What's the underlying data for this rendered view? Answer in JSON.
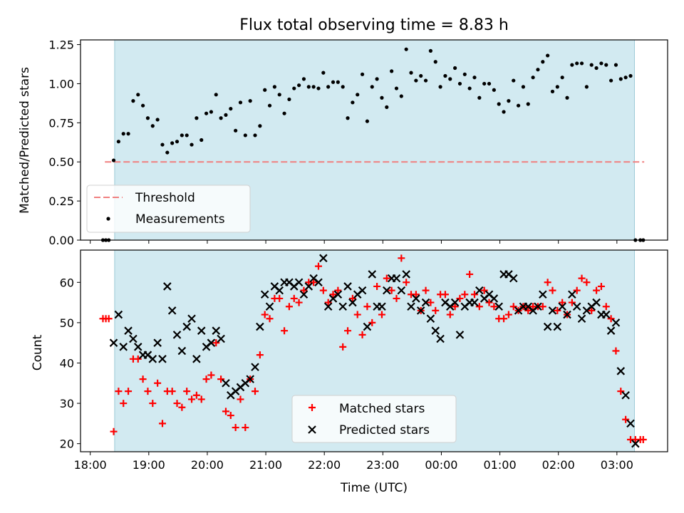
{
  "chart_data": [
    {
      "type": "scatter",
      "title": "Flux total observing time = 8.83 h",
      "ylabel": "Matched/Predicted stars",
      "xlabel": "",
      "xlim": [
        "17:50",
        "03:52"
      ],
      "ylim": [
        0,
        1.28
      ],
      "yticks": [
        0.0,
        0.25,
        0.5,
        0.75,
        1.0,
        1.25
      ],
      "ytick_labels": [
        "0.00",
        "0.25",
        "0.50",
        "0.75",
        "1.00",
        "1.25"
      ],
      "observing_window": [
        "18:25",
        "03:18"
      ],
      "threshold": {
        "name": "Threshold",
        "value": 0.5,
        "x_range": [
          "18:15",
          "03:28"
        ],
        "color": "#f08080"
      },
      "legend": {
        "placement": "lower-left",
        "entries": [
          "Threshold",
          "Measurements"
        ]
      },
      "series": [
        {
          "name": "Measurements",
          "color": "#000000",
          "x": [
            "18:13",
            "18:16",
            "18:19",
            "18:24",
            "18:29",
            "18:34",
            "18:39",
            "18:44",
            "18:49",
            "18:54",
            "18:59",
            "19:04",
            "19:09",
            "19:14",
            "19:19",
            "19:24",
            "19:29",
            "19:34",
            "19:39",
            "19:44",
            "19:49",
            "19:54",
            "19:59",
            "20:04",
            "20:09",
            "20:14",
            "20:19",
            "20:24",
            "20:29",
            "20:34",
            "20:39",
            "20:44",
            "20:49",
            "20:54",
            "20:59",
            "21:04",
            "21:09",
            "21:14",
            "21:19",
            "21:24",
            "21:29",
            "21:34",
            "21:39",
            "21:44",
            "21:49",
            "21:54",
            "21:59",
            "22:04",
            "22:09",
            "22:14",
            "22:19",
            "22:24",
            "22:29",
            "22:34",
            "22:39",
            "22:44",
            "22:49",
            "22:54",
            "22:59",
            "23:04",
            "23:09",
            "23:14",
            "23:19",
            "23:24",
            "23:29",
            "23:34",
            "23:39",
            "23:44",
            "23:49",
            "23:54",
            "23:59",
            "00:04",
            "00:09",
            "00:14",
            "00:19",
            "00:24",
            "00:29",
            "00:34",
            "00:39",
            "00:44",
            "00:49",
            "00:54",
            "00:59",
            "01:04",
            "01:09",
            "01:14",
            "01:19",
            "01:24",
            "01:29",
            "01:34",
            "01:39",
            "01:44",
            "01:49",
            "01:54",
            "01:59",
            "02:04",
            "02:09",
            "02:14",
            "02:19",
            "02:24",
            "02:29",
            "02:34",
            "02:39",
            "02:44",
            "02:49",
            "02:54",
            "02:59",
            "03:04",
            "03:09",
            "03:14",
            "03:19",
            "03:24",
            "03:27"
          ],
          "y": [
            0.0,
            0.0,
            0.0,
            0.51,
            0.63,
            0.68,
            0.68,
            0.89,
            0.93,
            0.86,
            0.78,
            0.73,
            0.77,
            0.61,
            0.56,
            0.62,
            0.63,
            0.67,
            0.67,
            0.61,
            0.78,
            0.64,
            0.81,
            0.82,
            0.93,
            0.78,
            0.8,
            0.84,
            0.7,
            0.88,
            0.67,
            0.89,
            0.67,
            0.73,
            0.96,
            0.86,
            0.98,
            0.93,
            0.81,
            0.9,
            0.97,
            0.99,
            1.03,
            0.98,
            0.98,
            0.97,
            1.07,
            0.98,
            1.01,
            1.01,
            0.98,
            0.78,
            0.88,
            0.93,
            1.06,
            0.76,
            0.98,
            1.03,
            0.91,
            0.85,
            1.08,
            0.97,
            0.92,
            1.22,
            1.07,
            1.02,
            1.05,
            1.02,
            1.21,
            1.14,
            0.98,
            1.05,
            1.03,
            1.1,
            1.0,
            1.06,
            0.97,
            1.04,
            0.91,
            1.0,
            1.0,
            0.96,
            0.87,
            0.82,
            0.89,
            1.02,
            0.86,
            0.98,
            0.87,
            1.04,
            1.09,
            1.14,
            1.18,
            0.95,
            0.98,
            1.04,
            0.91,
            1.12,
            1.13,
            1.13,
            0.98,
            1.12,
            1.1,
            1.13,
            1.12,
            1.02,
            1.12,
            1.03,
            1.04,
            1.05,
            0.0,
            0.0,
            0.0
          ]
        }
      ]
    },
    {
      "type": "scatter",
      "title": "",
      "ylabel": "Count",
      "xlabel": "Time (UTC)",
      "xlim": [
        "17:50",
        "03:52"
      ],
      "ylim": [
        18,
        68
      ],
      "yticks": [
        20,
        30,
        40,
        50,
        60
      ],
      "xticks": [
        "18:00",
        "19:00",
        "20:00",
        "21:00",
        "22:00",
        "23:00",
        "00:00",
        "01:00",
        "02:00",
        "03:00"
      ],
      "observing_window": [
        "18:25",
        "03:18"
      ],
      "legend": {
        "placement": "lower-center",
        "entries": [
          "Matched stars",
          "Predicted stars"
        ]
      },
      "series": [
        {
          "name": "Matched stars",
          "color": "#ff0000",
          "marker": "plus",
          "x": [
            "18:13",
            "18:16",
            "18:19",
            "18:24",
            "18:29",
            "18:34",
            "18:39",
            "18:44",
            "18:49",
            "18:54",
            "18:59",
            "19:04",
            "19:09",
            "19:14",
            "19:19",
            "19:24",
            "19:29",
            "19:34",
            "19:39",
            "19:44",
            "19:49",
            "19:54",
            "19:59",
            "20:04",
            "20:09",
            "20:14",
            "20:19",
            "20:24",
            "20:29",
            "20:34",
            "20:39",
            "20:44",
            "20:49",
            "20:54",
            "20:59",
            "21:04",
            "21:09",
            "21:14",
            "21:19",
            "21:24",
            "21:29",
            "21:34",
            "21:39",
            "21:44",
            "21:49",
            "21:54",
            "21:59",
            "22:04",
            "22:09",
            "22:14",
            "22:19",
            "22:24",
            "22:29",
            "22:34",
            "22:39",
            "22:44",
            "22:49",
            "22:54",
            "22:59",
            "23:04",
            "23:09",
            "23:14",
            "23:19",
            "23:24",
            "23:29",
            "23:34",
            "23:39",
            "23:44",
            "23:49",
            "23:54",
            "23:59",
            "00:04",
            "00:09",
            "00:14",
            "00:19",
            "00:24",
            "00:29",
            "00:34",
            "00:39",
            "00:44",
            "00:49",
            "00:54",
            "00:59",
            "01:04",
            "01:09",
            "01:14",
            "01:19",
            "01:24",
            "01:29",
            "01:34",
            "01:39",
            "01:44",
            "01:49",
            "01:54",
            "01:59",
            "02:04",
            "02:09",
            "02:14",
            "02:19",
            "02:24",
            "02:29",
            "02:34",
            "02:39",
            "02:44",
            "02:49",
            "02:54",
            "02:59",
            "03:04",
            "03:09",
            "03:14",
            "03:19",
            "03:24",
            "03:27"
          ],
          "y": [
            51,
            51,
            51,
            23,
            33,
            30,
            33,
            41,
            41,
            36,
            33,
            30,
            35,
            25,
            33,
            33,
            30,
            29,
            33,
            31,
            32,
            31,
            36,
            37,
            45,
            36,
            28,
            27,
            24,
            31,
            24,
            36,
            33,
            42,
            52,
            51,
            56,
            56,
            48,
            54,
            56,
            55,
            58,
            60,
            60,
            64,
            58,
            55,
            57,
            58,
            44,
            48,
            56,
            52,
            47,
            54,
            50,
            59,
            52,
            61,
            58,
            56,
            66,
            60,
            57,
            57,
            53,
            58,
            55,
            53,
            57,
            57,
            52,
            54,
            56,
            57,
            62,
            57,
            54,
            58,
            55,
            54,
            51,
            51,
            52,
            54,
            53,
            54,
            53,
            54,
            54,
            54,
            60,
            58,
            53,
            55,
            52,
            55,
            58,
            61,
            60,
            53,
            58,
            59,
            54,
            51,
            43,
            33,
            26,
            21,
            21,
            21,
            21
          ]
        },
        {
          "name": "Predicted stars",
          "color": "#000000",
          "marker": "x",
          "x": [
            "18:24",
            "18:29",
            "18:34",
            "18:39",
            "18:44",
            "18:49",
            "18:54",
            "18:59",
            "19:04",
            "19:09",
            "19:14",
            "19:19",
            "19:24",
            "19:29",
            "19:34",
            "19:39",
            "19:44",
            "19:49",
            "19:54",
            "19:59",
            "20:04",
            "20:09",
            "20:14",
            "20:19",
            "20:24",
            "20:29",
            "20:34",
            "20:39",
            "20:44",
            "20:49",
            "20:54",
            "20:59",
            "21:04",
            "21:09",
            "21:14",
            "21:19",
            "21:24",
            "21:29",
            "21:34",
            "21:39",
            "21:44",
            "21:49",
            "21:54",
            "21:59",
            "22:04",
            "22:09",
            "22:14",
            "22:19",
            "22:24",
            "22:29",
            "22:34",
            "22:39",
            "22:44",
            "22:49",
            "22:54",
            "22:59",
            "23:04",
            "23:09",
            "23:14",
            "23:19",
            "23:24",
            "23:29",
            "23:34",
            "23:39",
            "23:44",
            "23:49",
            "23:54",
            "23:59",
            "00:04",
            "00:09",
            "00:14",
            "00:19",
            "00:24",
            "00:29",
            "00:34",
            "00:39",
            "00:44",
            "00:49",
            "00:54",
            "00:59",
            "01:04",
            "01:09",
            "01:14",
            "01:19",
            "01:24",
            "01:29",
            "01:34",
            "01:39",
            "01:44",
            "01:49",
            "01:54",
            "01:59",
            "02:04",
            "02:09",
            "02:14",
            "02:19",
            "02:24",
            "02:29",
            "02:34",
            "02:39",
            "02:44",
            "02:49",
            "02:54",
            "02:59",
            "03:04",
            "03:09",
            "03:14",
            "03:19"
          ],
          "y": [
            45,
            52,
            44,
            48,
            46,
            44,
            42,
            42,
            41,
            45,
            41,
            59,
            53,
            47,
            43,
            49,
            51,
            41,
            48,
            44,
            45,
            48,
            46,
            35,
            32,
            33,
            34,
            35,
            36,
            39,
            49,
            57,
            54,
            59,
            58,
            60,
            60,
            59,
            60,
            57,
            59,
            61,
            60,
            66,
            54,
            56,
            57,
            54,
            59,
            55,
            57,
            58,
            49,
            62,
            54,
            54,
            58,
            61,
            61,
            58,
            62,
            54,
            56,
            53,
            55,
            51,
            48,
            46,
            55,
            54,
            55,
            47,
            54,
            55,
            55,
            58,
            56,
            57,
            56,
            54,
            62,
            62,
            61,
            53,
            54,
            54,
            53,
            54,
            57,
            49,
            53,
            49,
            54,
            52,
            57,
            54,
            51,
            53,
            54,
            55,
            52,
            52,
            48,
            50,
            38,
            32,
            25,
            20
          ]
        }
      ]
    }
  ]
}
